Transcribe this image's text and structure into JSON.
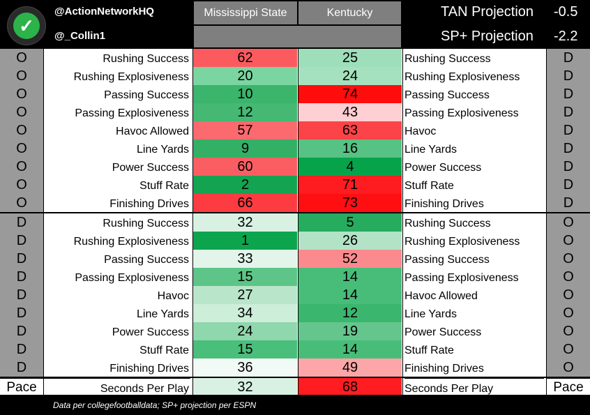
{
  "header": {
    "handle1": "@ActionNetworkHQ",
    "handle2": "@_Collin1",
    "team_left": "Mississippi State",
    "team_right": "Kentucky",
    "proj1_label": "TAN Projection",
    "proj1_value": "-0.5",
    "proj2_label": "SP+ Projection",
    "proj2_value": "-2.2"
  },
  "footer": {
    "note": "Data per collegefootballdata; SP+ projection per ESPN"
  },
  "chart_data": {
    "type": "table",
    "columns": [
      "Mississippi State",
      "Kentucky"
    ],
    "rows": [
      {
        "left_side": "O",
        "left_label": "Rushing Success",
        "ms": 62,
        "ky": 25,
        "right_label": "Rushing Success",
        "right_side": "D"
      },
      {
        "left_side": "O",
        "left_label": "Rushing Explosiveness",
        "ms": 20,
        "ky": 24,
        "right_label": "Rushing Explosiveness",
        "right_side": "D"
      },
      {
        "left_side": "O",
        "left_label": "Passing Success",
        "ms": 10,
        "ky": 74,
        "right_label": "Passing Success",
        "right_side": "D"
      },
      {
        "left_side": "O",
        "left_label": "Passing Explosiveness",
        "ms": 12,
        "ky": 43,
        "right_label": "Passing Explosiveness",
        "right_side": "D"
      },
      {
        "left_side": "O",
        "left_label": "Havoc Allowed",
        "ms": 57,
        "ky": 63,
        "right_label": "Havoc",
        "right_side": "D"
      },
      {
        "left_side": "O",
        "left_label": "Line Yards",
        "ms": 9,
        "ky": 16,
        "right_label": "Line Yards",
        "right_side": "D"
      },
      {
        "left_side": "O",
        "left_label": "Power Success",
        "ms": 60,
        "ky": 4,
        "right_label": "Power Success",
        "right_side": "D"
      },
      {
        "left_side": "O",
        "left_label": "Stuff Rate",
        "ms": 2,
        "ky": 71,
        "right_label": "Stuff Rate",
        "right_side": "D"
      },
      {
        "left_side": "O",
        "left_label": "Finishing Drives",
        "ms": 66,
        "ky": 73,
        "right_label": "Finishing Drives",
        "right_side": "D"
      },
      {
        "left_side": "D",
        "left_label": "Rushing Success",
        "ms": 32,
        "ky": 5,
        "right_label": "Rushing Success",
        "right_side": "O"
      },
      {
        "left_side": "D",
        "left_label": "Rushing Explosiveness",
        "ms": 1,
        "ky": 26,
        "right_label": "Rushing Explosiveness",
        "right_side": "O"
      },
      {
        "left_side": "D",
        "left_label": "Passing Success",
        "ms": 33,
        "ky": 52,
        "right_label": "Passing Success",
        "right_side": "O"
      },
      {
        "left_side": "D",
        "left_label": "Passing Explosiveness",
        "ms": 15,
        "ky": 14,
        "right_label": "Passing Explosiveness",
        "right_side": "O"
      },
      {
        "left_side": "D",
        "left_label": "Havoc",
        "ms": 27,
        "ky": 14,
        "right_label": "Havoc Allowed",
        "right_side": "O"
      },
      {
        "left_side": "D",
        "left_label": "Line Yards",
        "ms": 34,
        "ky": 12,
        "right_label": "Line Yards",
        "right_side": "O"
      },
      {
        "left_side": "D",
        "left_label": "Power Success",
        "ms": 24,
        "ky": 19,
        "right_label": "Power Success",
        "right_side": "O"
      },
      {
        "left_side": "D",
        "left_label": "Stuff Rate",
        "ms": 15,
        "ky": 14,
        "right_label": "Stuff Rate",
        "right_side": "O"
      },
      {
        "left_side": "D",
        "left_label": "Finishing Drives",
        "ms": 36,
        "ky": 49,
        "right_label": "Finishing Drives",
        "right_side": "O"
      },
      {
        "left_side": "Pace",
        "left_label": "Seconds Per Play",
        "ms": 32,
        "ky": 68,
        "right_label": "Seconds Per Play",
        "right_side": "Pace"
      }
    ],
    "cell_colors": {
      "ms": [
        "#fb5b5e",
        "#7ad5a0",
        "#3bb46c",
        "#45b873",
        "#fb6a6e",
        "#33b066",
        "#fb5e62",
        "#14a351",
        "#fc3c41",
        "#d8f1e3",
        "#0ca54d",
        "#e3f5ea",
        "#5cc587",
        "#b9e5cb",
        "#cdeed9",
        "#8fd7ac",
        "#4abe7b",
        "#f2faf5",
        "#d8f1e3"
      ],
      "ky": [
        "#9fdeba",
        "#a5e1be",
        "#ff0c0c",
        "#ffd0d3",
        "#fc4347",
        "#56c283",
        "#07a34a",
        "#fe1c20",
        "#ff0f12",
        "#27ab5f",
        "#b3e3c7",
        "#fb8a8e",
        "#48bd79",
        "#48bd79",
        "#3bb66f",
        "#64c68d",
        "#48bd79",
        "#fca6a9",
        "#ff1d21"
      ]
    }
  }
}
